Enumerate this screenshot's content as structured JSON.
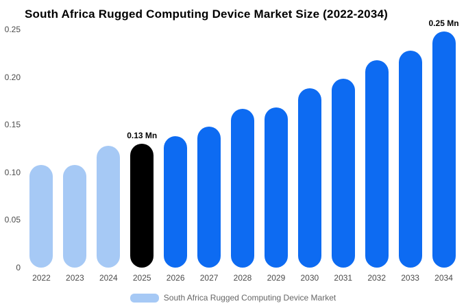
{
  "chart_data": {
    "type": "bar",
    "title": "South Africa Rugged Computing Device Market Size (2022-2034)",
    "xlabel": "",
    "ylabel": "",
    "unit": "Mn",
    "ylim": [
      0,
      0.25
    ],
    "grid": false,
    "legend_position": "bottom",
    "categories": [
      "2022",
      "2023",
      "2024",
      "2025",
      "2026",
      "2027",
      "2028",
      "2029",
      "2030",
      "2031",
      "2032",
      "2033",
      "2034"
    ],
    "values": [
      0.108,
      0.108,
      0.128,
      0.13,
      0.138,
      0.148,
      0.167,
      0.168,
      0.188,
      0.198,
      0.218,
      0.228,
      0.248
    ],
    "bar_colors": [
      "#a6c9f5",
      "#a6c9f5",
      "#a6c9f5",
      "#000000",
      "#0d6bf2",
      "#0d6bf2",
      "#0d6bf2",
      "#0d6bf2",
      "#0d6bf2",
      "#0d6bf2",
      "#0d6bf2",
      "#0d6bf2",
      "#0d6bf2"
    ],
    "colors": {
      "historical": "#a6c9f5",
      "base_year": "#000000",
      "forecast": "#0d6bf2"
    },
    "yticks": [
      {
        "label": "0",
        "value": 0
      },
      {
        "label": "0.05",
        "value": 0.05
      },
      {
        "label": "0.10",
        "value": 0.1
      },
      {
        "label": "0.15",
        "value": 0.15
      },
      {
        "label": "0.20",
        "value": 0.2
      },
      {
        "label": "0.25",
        "value": 0.25
      }
    ],
    "annotations": [
      {
        "category": "2025",
        "text": "0.13 Mn"
      },
      {
        "category": "2034",
        "text": "0.25 Mn"
      }
    ],
    "legend": {
      "label": "South Africa Rugged Computing Device Market",
      "swatch_color": "#a6c9f5"
    }
  }
}
